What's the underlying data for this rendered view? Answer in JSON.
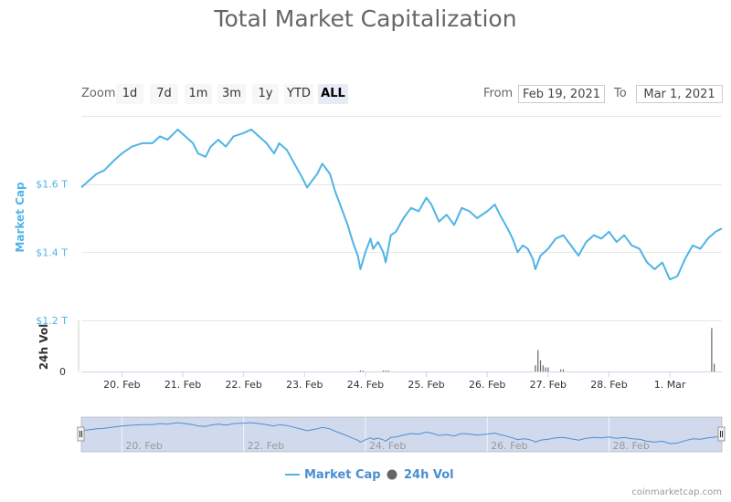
{
  "title": "Total Market Capitalization",
  "zoom": {
    "label": "Zoom",
    "buttons": [
      "1d",
      "7d",
      "1m",
      "3m",
      "1y",
      "YTD",
      "ALL"
    ],
    "active": "ALL"
  },
  "range": {
    "from_label": "From",
    "from_value": "Feb 19, 2021",
    "to_label": "To",
    "to_value": "Mar 1, 2021"
  },
  "legend": {
    "market_cap": "Market Cap",
    "volume": "24h Vol"
  },
  "credit": "coinmarketcap.com",
  "colors": {
    "market_cap": "#4fb4e6",
    "volume": "#666666",
    "navigator_fill": "#ccd6eb",
    "navigator_line": "#4a8ed1",
    "title": "#666666"
  },
  "chart_data": {
    "type": "line",
    "title": "Total Market Capitalization",
    "x_unit": "date (2021)",
    "xlim": [
      "2021-02-19T08:00",
      "2021-03-01T20:30"
    ],
    "x_tick_labels": [
      "20. Feb",
      "21. Feb",
      "22. Feb",
      "23. Feb",
      "24. Feb",
      "25. Feb",
      "26. Feb",
      "27. Feb",
      "28. Feb",
      "1. Mar"
    ],
    "grid": true,
    "legend_position": "bottom-center",
    "price_panel": {
      "ylabel": "Market Cap",
      "y_tick_labels": [
        "$1.2 T",
        "$1.4 T",
        "$1.6 T"
      ],
      "ylim": [
        1.2,
        1.8
      ],
      "unit": "trillion USD",
      "series": [
        {
          "name": "Market Cap",
          "points": [
            [
              "2021-02-19T08:00",
              1.59
            ],
            [
              "2021-02-19T11:00",
              1.61
            ],
            [
              "2021-02-19T14:00",
              1.63
            ],
            [
              "2021-02-19T17:00",
              1.64
            ],
            [
              "2021-02-19T21:00",
              1.67
            ],
            [
              "2021-02-20T00:00",
              1.69
            ],
            [
              "2021-02-20T04:00",
              1.71
            ],
            [
              "2021-02-20T08:00",
              1.72
            ],
            [
              "2021-02-20T12:00",
              1.72
            ],
            [
              "2021-02-20T15:00",
              1.74
            ],
            [
              "2021-02-20T18:00",
              1.73
            ],
            [
              "2021-02-20T22:00",
              1.76
            ],
            [
              "2021-02-21T01:00",
              1.74
            ],
            [
              "2021-02-21T04:00",
              1.72
            ],
            [
              "2021-02-21T06:00",
              1.69
            ],
            [
              "2021-02-21T09:00",
              1.68
            ],
            [
              "2021-02-21T11:00",
              1.71
            ],
            [
              "2021-02-21T14:00",
              1.73
            ],
            [
              "2021-02-21T17:00",
              1.71
            ],
            [
              "2021-02-21T20:00",
              1.74
            ],
            [
              "2021-02-22T00:00",
              1.75
            ],
            [
              "2021-02-22T03:00",
              1.76
            ],
            [
              "2021-02-22T06:00",
              1.74
            ],
            [
              "2021-02-22T09:00",
              1.72
            ],
            [
              "2021-02-22T12:00",
              1.69
            ],
            [
              "2021-02-22T14:00",
              1.72
            ],
            [
              "2021-02-22T17:00",
              1.7
            ],
            [
              "2021-02-22T20:00",
              1.66
            ],
            [
              "2021-02-22T23:00",
              1.62
            ],
            [
              "2021-02-23T01:00",
              1.59
            ],
            [
              "2021-02-23T03:00",
              1.61
            ],
            [
              "2021-02-23T05:00",
              1.63
            ],
            [
              "2021-02-23T07:00",
              1.66
            ],
            [
              "2021-02-23T10:00",
              1.63
            ],
            [
              "2021-02-23T12:00",
              1.58
            ],
            [
              "2021-02-23T14:00",
              1.54
            ],
            [
              "2021-02-23T17:00",
              1.48
            ],
            [
              "2021-02-23T19:00",
              1.43
            ],
            [
              "2021-02-23T21:00",
              1.39
            ],
            [
              "2021-02-23T22:00",
              1.35
            ],
            [
              "2021-02-24T00:00",
              1.4
            ],
            [
              "2021-02-24T02:00",
              1.44
            ],
            [
              "2021-02-24T03:00",
              1.41
            ],
            [
              "2021-02-24T05:00",
              1.43
            ],
            [
              "2021-02-24T07:00",
              1.4
            ],
            [
              "2021-02-24T08:00",
              1.37
            ],
            [
              "2021-02-24T10:00",
              1.45
            ],
            [
              "2021-02-24T12:00",
              1.46
            ],
            [
              "2021-02-24T15:00",
              1.5
            ],
            [
              "2021-02-24T18:00",
              1.53
            ],
            [
              "2021-02-24T21:00",
              1.52
            ],
            [
              "2021-02-25T00:00",
              1.56
            ],
            [
              "2021-02-25T02:00",
              1.54
            ],
            [
              "2021-02-25T05:00",
              1.49
            ],
            [
              "2021-02-25T08:00",
              1.51
            ],
            [
              "2021-02-25T11:00",
              1.48
            ],
            [
              "2021-02-25T14:00",
              1.53
            ],
            [
              "2021-02-25T17:00",
              1.52
            ],
            [
              "2021-02-25T20:00",
              1.5
            ],
            [
              "2021-02-26T00:00",
              1.52
            ],
            [
              "2021-02-26T03:00",
              1.54
            ],
            [
              "2021-02-26T05:00",
              1.51
            ],
            [
              "2021-02-26T08:00",
              1.47
            ],
            [
              "2021-02-26T10:00",
              1.44
            ],
            [
              "2021-02-26T12:00",
              1.4
            ],
            [
              "2021-02-26T14:00",
              1.42
            ],
            [
              "2021-02-26T16:00",
              1.41
            ],
            [
              "2021-02-26T18:00",
              1.38
            ],
            [
              "2021-02-26T19:00",
              1.35
            ],
            [
              "2021-02-26T21:00",
              1.39
            ],
            [
              "2021-02-27T00:00",
              1.41
            ],
            [
              "2021-02-27T03:00",
              1.44
            ],
            [
              "2021-02-27T06:00",
              1.45
            ],
            [
              "2021-02-27T09:00",
              1.42
            ],
            [
              "2021-02-27T12:00",
              1.39
            ],
            [
              "2021-02-27T15:00",
              1.43
            ],
            [
              "2021-02-27T18:00",
              1.45
            ],
            [
              "2021-02-27T21:00",
              1.44
            ],
            [
              "2021-02-28T00:00",
              1.46
            ],
            [
              "2021-02-28T03:00",
              1.43
            ],
            [
              "2021-02-28T06:00",
              1.45
            ],
            [
              "2021-02-28T09:00",
              1.42
            ],
            [
              "2021-02-28T12:00",
              1.41
            ],
            [
              "2021-02-28T15:00",
              1.37
            ],
            [
              "2021-02-28T18:00",
              1.35
            ],
            [
              "2021-02-28T21:00",
              1.37
            ],
            [
              "2021-03-01T00:00",
              1.32
            ],
            [
              "2021-03-01T03:00",
              1.33
            ],
            [
              "2021-03-01T06:00",
              1.38
            ],
            [
              "2021-03-01T09:00",
              1.42
            ],
            [
              "2021-03-01T12:00",
              1.41
            ],
            [
              "2021-03-01T15:00",
              1.44
            ],
            [
              "2021-03-01T18:00",
              1.46
            ],
            [
              "2021-03-01T20:30",
              1.47
            ]
          ]
        }
      ]
    },
    "volume_panel": {
      "ylabel": "24h Vol",
      "y_tick_labels": [
        "0"
      ],
      "ylim": [
        0,
        1
      ],
      "unit": "relative",
      "series": [
        {
          "name": "24h Vol",
          "type": "bar",
          "points": [
            [
              "2021-02-23T22:00",
              0.02
            ],
            [
              "2021-02-23T23:00",
              0.02
            ],
            [
              "2021-02-24T07:00",
              0.02
            ],
            [
              "2021-02-24T08:00",
              0.02
            ],
            [
              "2021-02-24T09:00",
              0.02
            ],
            [
              "2021-02-26T19:00",
              0.12
            ],
            [
              "2021-02-26T20:00",
              0.42
            ],
            [
              "2021-02-26T21:00",
              0.22
            ],
            [
              "2021-02-26T22:00",
              0.12
            ],
            [
              "2021-02-26T23:00",
              0.08
            ],
            [
              "2021-02-27T00:00",
              0.08
            ],
            [
              "2021-02-27T05:00",
              0.04
            ],
            [
              "2021-02-27T06:00",
              0.04
            ],
            [
              "2021-03-01T16:30",
              0.85
            ],
            [
              "2021-03-01T17:30",
              0.15
            ]
          ]
        }
      ]
    },
    "navigator": {
      "x_tick_labels": [
        "20. Feb",
        "22. Feb",
        "24. Feb",
        "26. Feb",
        "28. Feb"
      ]
    }
  }
}
